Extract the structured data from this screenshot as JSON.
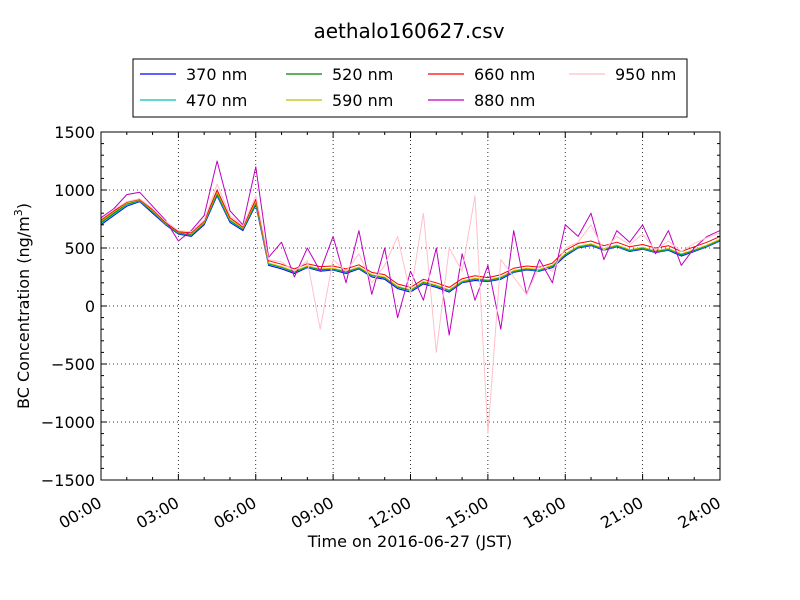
{
  "chart_data": {
    "type": "line",
    "title": "aethalo160627.csv",
    "xlabel": "Time on 2016-06-27 (JST)",
    "ylabel_main": "BC Concentration (ng/m",
    "ylabel_sup": "3",
    "ylabel_close": ")",
    "xlim_hours": [
      0,
      24
    ],
    "ylim": [
      -1500,
      1500
    ],
    "grid": true,
    "legend_position": "top-center",
    "x_ticks": [
      {
        "hour": 0,
        "label": "00:00"
      },
      {
        "hour": 3,
        "label": "03:00"
      },
      {
        "hour": 6,
        "label": "06:00"
      },
      {
        "hour": 9,
        "label": "09:00"
      },
      {
        "hour": 12,
        "label": "12:00"
      },
      {
        "hour": 15,
        "label": "15:00"
      },
      {
        "hour": 18,
        "label": "18:00"
      },
      {
        "hour": 21,
        "label": "21:00"
      },
      {
        "hour": 24,
        "label": "24:00"
      }
    ],
    "y_ticks": [
      {
        "value": 1500,
        "label": "1500"
      },
      {
        "value": 1000,
        "label": "1000"
      },
      {
        "value": 500,
        "label": "500"
      },
      {
        "value": 0,
        "label": "0"
      },
      {
        "value": -500,
        "label": "−500"
      },
      {
        "value": -1000,
        "label": "−1000"
      },
      {
        "value": -1500,
        "label": "−1500"
      }
    ],
    "x_hours": [
      0.0,
      0.5,
      1.0,
      1.5,
      2.0,
      2.5,
      3.0,
      3.5,
      4.0,
      4.5,
      5.0,
      5.5,
      6.0,
      6.5,
      7.0,
      7.5,
      8.0,
      8.5,
      9.0,
      9.5,
      10.0,
      10.5,
      11.0,
      11.5,
      12.0,
      12.5,
      13.0,
      13.5,
      14.0,
      14.5,
      15.0,
      15.5,
      16.0,
      16.5,
      17.0,
      17.5,
      18.0,
      18.5,
      19.0,
      19.5,
      20.0,
      20.5,
      21.0,
      21.5,
      22.0,
      22.5,
      23.0,
      23.5,
      24.0
    ],
    "series": [
      {
        "name": "370 nm",
        "color": "#0000ff",
        "values": [
          700,
          780,
          860,
          900,
          800,
          700,
          620,
          600,
          700,
          950,
          720,
          650,
          870,
          350,
          320,
          280,
          330,
          300,
          310,
          280,
          320,
          250,
          230,
          150,
          120,
          190,
          160,
          120,
          200,
          220,
          210,
          230,
          290,
          310,
          300,
          330,
          430,
          500,
          520,
          480,
          510,
          470,
          490,
          460,
          480,
          430,
          470,
          510,
          560
        ]
      },
      {
        "name": "470 nm",
        "color": "#00bfbf",
        "values": [
          710,
          790,
          870,
          905,
          810,
          705,
          625,
          610,
          710,
          960,
          730,
          660,
          880,
          360,
          330,
          290,
          335,
          310,
          315,
          290,
          325,
          260,
          240,
          160,
          130,
          200,
          170,
          130,
          205,
          230,
          215,
          240,
          295,
          315,
          305,
          340,
          440,
          505,
          525,
          485,
          515,
          475,
          495,
          465,
          485,
          440,
          475,
          515,
          565
        ]
      },
      {
        "name": "520 nm",
        "color": "#008000",
        "values": [
          720,
          800,
          880,
          910,
          815,
          710,
          630,
          615,
          715,
          970,
          740,
          665,
          890,
          365,
          335,
          295,
          340,
          315,
          320,
          295,
          330,
          265,
          245,
          165,
          135,
          205,
          175,
          135,
          210,
          235,
          220,
          245,
          300,
          320,
          310,
          345,
          445,
          510,
          530,
          490,
          520,
          480,
          500,
          470,
          490,
          445,
          480,
          520,
          570
        ]
      },
      {
        "name": "590 nm",
        "color": "#bfbf00",
        "values": [
          730,
          810,
          885,
          915,
          820,
          715,
          635,
          620,
          720,
          980,
          745,
          670,
          900,
          370,
          340,
          300,
          345,
          320,
          325,
          300,
          335,
          270,
          250,
          170,
          140,
          210,
          180,
          140,
          215,
          240,
          225,
          250,
          305,
          325,
          315,
          350,
          450,
          515,
          535,
          495,
          525,
          485,
          505,
          475,
          495,
          450,
          485,
          525,
          575
        ]
      },
      {
        "name": "660 nm",
        "color": "#ff0000",
        "values": [
          740,
          820,
          895,
          920,
          830,
          720,
          640,
          630,
          730,
          1000,
          760,
          680,
          920,
          390,
          360,
          320,
          365,
          340,
          345,
          320,
          355,
          290,
          270,
          190,
          160,
          230,
          200,
          160,
          235,
          260,
          245,
          270,
          325,
          345,
          335,
          370,
          480,
          540,
          560,
          520,
          550,
          510,
          530,
          500,
          520,
          470,
          510,
          550,
          600
        ]
      },
      {
        "name": "880 nm",
        "color": "#bf00bf",
        "values": [
          760,
          840,
          960,
          980,
          860,
          740,
          560,
          650,
          780,
          1250,
          820,
          700,
          1200,
          420,
          550,
          250,
          500,
          300,
          600,
          200,
          650,
          100,
          500,
          -100,
          300,
          50,
          500,
          -250,
          450,
          50,
          350,
          -200,
          650,
          100,
          400,
          200,
          700,
          600,
          800,
          400,
          650,
          550,
          700,
          450,
          650,
          350,
          500,
          600,
          650
        ]
      },
      {
        "name": "950 nm",
        "color": "#ffc0cb",
        "values": [
          750,
          830,
          900,
          925,
          840,
          730,
          650,
          640,
          740,
          1050,
          780,
          690,
          950,
          400,
          380,
          300,
          390,
          -200,
          400,
          300,
          450,
          200,
          350,
          600,
          100,
          800,
          -400,
          500,
          300,
          950,
          -1100,
          400,
          250,
          100,
          350,
          300,
          500,
          550,
          700,
          480,
          600,
          530,
          620,
          480,
          560,
          470,
          540,
          590,
          630
        ]
      }
    ]
  }
}
